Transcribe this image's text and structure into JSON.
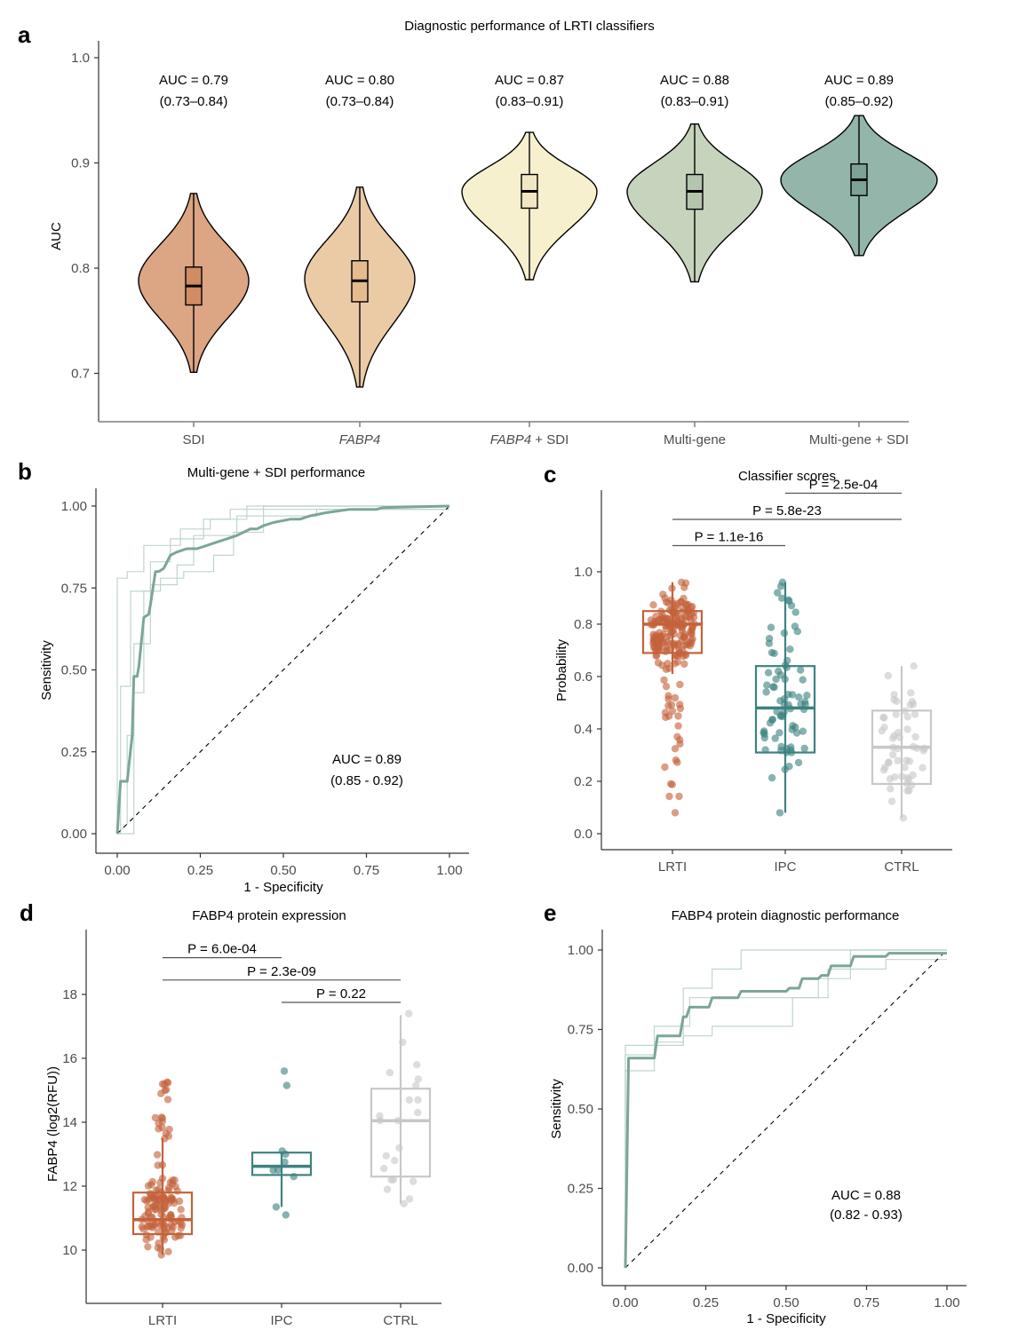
{
  "chart_data": [
    {
      "panel": "a",
      "type": "violin",
      "title": "Diagnostic performance of LRTI classifiers",
      "xlabel": "",
      "ylabel": "AUC",
      "ylim": [
        0.655,
        1.015
      ],
      "yticks": [
        "0.7",
        "0.8",
        "0.9",
        "1.0"
      ],
      "ytick_values": [
        0.7,
        0.8,
        0.9,
        1.0
      ],
      "categories": [
        {
          "label": "SDI",
          "italic_part": "",
          "plain_part": "SDI"
        },
        {
          "label": "FABP4",
          "italic_part": "FABP4",
          "plain_part": ""
        },
        {
          "label": "FABP4 + SDI",
          "italic_part": "FABP4",
          "plain_part": " + SDI"
        },
        {
          "label": "Multi-gene",
          "italic_part": "",
          "plain_part": "Multi-gene"
        },
        {
          "label": "Multi-gene + SDI",
          "italic_part": "",
          "plain_part": "Multi-gene + SDI"
        }
      ],
      "series": [
        {
          "name": "SDI",
          "auc_label": "AUC = 0.79",
          "ci_label": "(0.73–0.84)",
          "color": "#dca583",
          "box_color": "#d18c63",
          "min": 0.701,
          "max": 0.871,
          "q1": 0.765,
          "median": 0.783,
          "q3": 0.801,
          "density_peak": 0.788,
          "half_width_peak": 0.55
        },
        {
          "name": "FABP4",
          "auc_label": "AUC = 0.80",
          "ci_label": "(0.73–0.84)",
          "color": "#ebcaa6",
          "box_color": "#e5bb90",
          "min": 0.687,
          "max": 0.877,
          "q1": 0.768,
          "median": 0.788,
          "q3": 0.807,
          "density_peak": 0.79,
          "half_width_peak": 0.55
        },
        {
          "name": "FABP4 + SDI",
          "auc_label": "AUC = 0.87",
          "ci_label": "(0.83–0.91)",
          "color": "#f7f0ce",
          "box_color": "#f1e8c3",
          "min": 0.789,
          "max": 0.929,
          "q1": 0.857,
          "median": 0.873,
          "q3": 0.889,
          "density_peak": 0.873,
          "half_width_peak": 0.63
        },
        {
          "name": "Multi-gene",
          "auc_label": "AUC = 0.88",
          "ci_label": "(0.83–0.91)",
          "color": "#c6d4bd",
          "box_color": "#b3c5ad",
          "min": 0.787,
          "max": 0.937,
          "q1": 0.856,
          "median": 0.873,
          "q3": 0.889,
          "density_peak": 0.873,
          "half_width_peak": 0.62
        },
        {
          "name": "Multi-gene + SDI",
          "auc_label": "AUC = 0.89",
          "ci_label": "(0.85–0.92)",
          "color": "#94b5aa",
          "box_color": "#7ca395",
          "min": 0.812,
          "max": 0.945,
          "q1": 0.869,
          "median": 0.884,
          "q3": 0.899,
          "density_peak": 0.884,
          "half_width_peak": 0.68
        }
      ]
    },
    {
      "panel": "b",
      "type": "line",
      "title": "Multi-gene + SDI performance",
      "xlabel": "1 - Specificity",
      "ylabel": "Sensitivity",
      "xlim": [
        -0.06,
        1.06
      ],
      "ylim": [
        -0.06,
        1.06
      ],
      "xticks": [
        "0.00",
        "0.25",
        "0.50",
        "0.75",
        "1.00"
      ],
      "yticks": [
        "0.00",
        "0.25",
        "0.50",
        "0.75",
        "1.00"
      ],
      "annotation": {
        "auc": "AUC = 0.89",
        "ci": "(0.85 - 0.92)"
      },
      "color": "#7ba696",
      "mean_curve": [
        [
          0,
          0
        ],
        [
          0.01,
          0.16
        ],
        [
          0.03,
          0.16
        ],
        [
          0.045,
          0.3
        ],
        [
          0.05,
          0.48
        ],
        [
          0.06,
          0.48
        ],
        [
          0.065,
          0.51
        ],
        [
          0.08,
          0.66
        ],
        [
          0.095,
          0.67
        ],
        [
          0.1,
          0.7
        ],
        [
          0.115,
          0.8
        ],
        [
          0.125,
          0.8
        ],
        [
          0.14,
          0.81
        ],
        [
          0.16,
          0.85
        ],
        [
          0.18,
          0.86
        ],
        [
          0.21,
          0.87
        ],
        [
          0.24,
          0.87
        ],
        [
          0.27,
          0.88
        ],
        [
          0.3,
          0.89
        ],
        [
          0.33,
          0.9
        ],
        [
          0.36,
          0.91
        ],
        [
          0.38,
          0.92
        ],
        [
          0.4,
          0.93
        ],
        [
          0.42,
          0.93
        ],
        [
          0.44,
          0.94
        ],
        [
          0.47,
          0.95
        ],
        [
          0.52,
          0.96
        ],
        [
          0.55,
          0.96
        ],
        [
          0.58,
          0.97
        ],
        [
          0.63,
          0.98
        ],
        [
          0.7,
          0.99
        ],
        [
          0.78,
          0.99
        ],
        [
          0.8,
          0.995
        ],
        [
          0.9,
          0.998
        ],
        [
          1.0,
          1.0
        ]
      ],
      "fold_curves": [
        [
          [
            0,
            0
          ],
          [
            0,
            0.78
          ],
          [
            0.03,
            0.78
          ],
          [
            0.03,
            0.8
          ],
          [
            0.08,
            0.8
          ],
          [
            0.08,
            0.88
          ],
          [
            0.19,
            0.88
          ],
          [
            0.19,
            0.93
          ],
          [
            0.28,
            0.93
          ],
          [
            0.28,
            0.96
          ],
          [
            0.39,
            0.96
          ],
          [
            0.39,
            1.0
          ],
          [
            1.0,
            1.0
          ]
        ],
        [
          [
            0,
            0
          ],
          [
            0.01,
            0
          ],
          [
            0.01,
            0.45
          ],
          [
            0.04,
            0.45
          ],
          [
            0.04,
            0.74
          ],
          [
            0.1,
            0.74
          ],
          [
            0.1,
            0.83
          ],
          [
            0.16,
            0.83
          ],
          [
            0.16,
            0.9
          ],
          [
            0.26,
            0.9
          ],
          [
            0.26,
            0.96
          ],
          [
            0.34,
            0.96
          ],
          [
            0.34,
            0.99
          ],
          [
            1.0,
            0.99
          ]
        ],
        [
          [
            0,
            0
          ],
          [
            0.05,
            0
          ],
          [
            0.05,
            0.43
          ],
          [
            0.08,
            0.43
          ],
          [
            0.08,
            0.74
          ],
          [
            0.13,
            0.74
          ],
          [
            0.13,
            0.78
          ],
          [
            0.2,
            0.78
          ],
          [
            0.2,
            0.8
          ],
          [
            0.29,
            0.8
          ],
          [
            0.29,
            0.85
          ],
          [
            0.35,
            0.85
          ],
          [
            0.35,
            0.92
          ],
          [
            0.44,
            0.92
          ],
          [
            0.44,
            0.97
          ],
          [
            0.6,
            0.97
          ],
          [
            0.6,
            0.99
          ],
          [
            1.0,
            0.99
          ]
        ],
        [
          [
            0,
            0
          ],
          [
            0.03,
            0.03
          ],
          [
            0.03,
            0.3
          ],
          [
            0.05,
            0.3
          ],
          [
            0.05,
            0.58
          ],
          [
            0.1,
            0.58
          ],
          [
            0.1,
            0.76
          ],
          [
            0.18,
            0.76
          ],
          [
            0.18,
            0.82
          ],
          [
            0.23,
            0.82
          ],
          [
            0.23,
            0.91
          ],
          [
            0.36,
            0.91
          ],
          [
            0.36,
            0.97
          ],
          [
            0.44,
            0.97
          ],
          [
            0.44,
            1.0
          ],
          [
            1.0,
            1.0
          ]
        ]
      ]
    },
    {
      "panel": "c",
      "type": "box-dot",
      "title": "Classifier scores",
      "xlabel": "",
      "ylabel": "Probability",
      "ylim": [
        -0.06,
        1.38
      ],
      "yticks": [
        "0.0",
        "0.2",
        "0.4",
        "0.6",
        "0.8",
        "1.0"
      ],
      "ytick_values": [
        0.0,
        0.2,
        0.4,
        0.6,
        0.8,
        1.0
      ],
      "categories": [
        "LRTI",
        "IPC",
        "CTRL"
      ],
      "series": [
        {
          "name": "LRTI",
          "color": "#c4623b",
          "q1": 0.69,
          "median": 0.8,
          "q3": 0.85,
          "whisker_low": 0.61,
          "whisker_high": 0.96,
          "n_points": 200,
          "point_range": [
            0.08,
            0.96
          ]
        },
        {
          "name": "IPC",
          "color": "#3d8280",
          "q1": 0.31,
          "median": 0.48,
          "q3": 0.64,
          "whisker_low": 0.08,
          "whisker_high": 0.96,
          "n_points": 75,
          "point_range": [
            0.08,
            0.96
          ]
        },
        {
          "name": "CTRL",
          "color": "#c8c8c8",
          "q1": 0.19,
          "median": 0.33,
          "q3": 0.47,
          "whisker_low": 0.06,
          "whisker_high": 0.64,
          "n_points": 50,
          "point_range": [
            0.06,
            0.64
          ]
        }
      ],
      "comparisons": [
        {
          "from": "LRTI",
          "to": "IPC",
          "label": "P = 1.1e-16",
          "y": 1.1
        },
        {
          "from": "LRTI",
          "to": "CTRL",
          "label": "P = 5.8e-23",
          "y": 1.2
        },
        {
          "from": "IPC",
          "to": "CTRL",
          "label": "P = 2.5e-04",
          "y": 1.3
        }
      ]
    },
    {
      "panel": "d",
      "type": "box-dot",
      "title": "FABP4 protein expression",
      "xlabel": "",
      "ylabel": "FABP4 (log2(RFU))",
      "ylim": [
        8.5,
        19.9
      ],
      "yticks": [
        "10",
        "12",
        "14",
        "16",
        "18"
      ],
      "ytick_values": [
        10,
        12,
        14,
        16,
        18
      ],
      "categories": [
        "LRTI",
        "IPC",
        "CTRL"
      ],
      "series": [
        {
          "name": "LRTI",
          "color": "#c4623b",
          "q1": 10.5,
          "median": 10.95,
          "q3": 11.8,
          "whisker_low": 9.85,
          "whisker_high": 13.5,
          "n_points": 130,
          "point_range": [
            9.85,
            15.25
          ]
        },
        {
          "name": "IPC",
          "color": "#3d8280",
          "q1": 12.35,
          "median": 12.62,
          "q3": 13.05,
          "whisker_low": 11.35,
          "whisker_high": 13.05,
          "points": [
            15.6,
            15.15,
            13.1,
            13.0,
            12.75,
            12.5,
            12.5,
            12.3,
            11.35,
            11.1
          ]
        },
        {
          "name": "CTRL",
          "color": "#c8c8c8",
          "q1": 12.3,
          "median": 14.05,
          "q3": 15.05,
          "whisker_low": 11.45,
          "whisker_high": 17.35,
          "points": [
            17.4,
            16.5,
            15.8,
            15.55,
            15.35,
            15.15,
            14.7,
            14.7,
            14.3,
            14.2,
            14.05,
            14.05,
            13.2,
            12.95,
            12.8,
            12.55,
            12.2,
            12.2,
            12.15,
            11.9,
            11.6,
            11.45
          ]
        }
      ],
      "comparisons": [
        {
          "from": "LRTI",
          "to": "IPC",
          "label": "P = 6.0e-04",
          "y": 19.15
        },
        {
          "from": "LRTI",
          "to": "CTRL",
          "label": "P = 2.3e-09",
          "y": 18.45
        },
        {
          "from": "IPC",
          "to": "CTRL",
          "label": "P = 0.22",
          "y": 17.75
        }
      ]
    },
    {
      "panel": "e",
      "type": "line",
      "title": "FABP4 protein diagnostic performance",
      "xlabel": "1 - Specificity",
      "ylabel": "Sensitivity",
      "xlim": [
        -0.06,
        1.06
      ],
      "ylim": [
        -0.06,
        1.06
      ],
      "xticks": [
        "0.00",
        "0.25",
        "0.50",
        "0.75",
        "1.00"
      ],
      "yticks": [
        "0.00",
        "0.25",
        "0.50",
        "0.75",
        "1.00"
      ],
      "annotation": {
        "auc": "AUC = 0.88",
        "ci": "(0.82 - 0.93)"
      },
      "color": "#7ba696",
      "mean_curve": [
        [
          0,
          0
        ],
        [
          0.01,
          0.66
        ],
        [
          0.09,
          0.66
        ],
        [
          0.1,
          0.73
        ],
        [
          0.17,
          0.73
        ],
        [
          0.18,
          0.79
        ],
        [
          0.19,
          0.79
        ],
        [
          0.2,
          0.82
        ],
        [
          0.26,
          0.82
        ],
        [
          0.27,
          0.85
        ],
        [
          0.35,
          0.85
        ],
        [
          0.36,
          0.87
        ],
        [
          0.5,
          0.87
        ],
        [
          0.51,
          0.88
        ],
        [
          0.54,
          0.88
        ],
        [
          0.55,
          0.91
        ],
        [
          0.6,
          0.91
        ],
        [
          0.61,
          0.92
        ],
        [
          0.63,
          0.92
        ],
        [
          0.64,
          0.95
        ],
        [
          0.7,
          0.95
        ],
        [
          0.71,
          0.98
        ],
        [
          0.81,
          0.98
        ],
        [
          0.82,
          0.99
        ],
        [
          1.0,
          0.99
        ]
      ],
      "fold_curves": [
        [
          [
            0,
            0
          ],
          [
            0,
            0.7
          ],
          [
            0.18,
            0.7
          ],
          [
            0.18,
            0.88
          ],
          [
            0.27,
            0.88
          ],
          [
            0.27,
            0.94
          ],
          [
            0.36,
            0.94
          ],
          [
            0.36,
            1.0
          ],
          [
            1.0,
            1.0
          ]
        ],
        [
          [
            0,
            0
          ],
          [
            0,
            0.67
          ],
          [
            0.09,
            0.67
          ],
          [
            0.09,
            0.76
          ],
          [
            0.2,
            0.76
          ],
          [
            0.2,
            0.85
          ],
          [
            0.6,
            0.85
          ],
          [
            0.6,
            0.91
          ],
          [
            0.7,
            0.91
          ],
          [
            0.7,
            1.0
          ],
          [
            1.0,
            1.0
          ]
        ],
        [
          [
            0,
            0
          ],
          [
            0,
            0.62
          ],
          [
            0.09,
            0.62
          ],
          [
            0.09,
            0.71
          ],
          [
            0.18,
            0.71
          ],
          [
            0.18,
            0.73
          ],
          [
            0.27,
            0.73
          ],
          [
            0.27,
            0.76
          ],
          [
            0.52,
            0.76
          ],
          [
            0.52,
            0.85
          ],
          [
            0.63,
            0.85
          ],
          [
            0.63,
            0.94
          ],
          [
            0.81,
            0.94
          ],
          [
            0.81,
            0.97
          ],
          [
            1.0,
            0.97
          ]
        ]
      ]
    }
  ],
  "panel_letters": {
    "a": "a",
    "b": "b",
    "c": "c",
    "d": "d",
    "e": "e"
  }
}
